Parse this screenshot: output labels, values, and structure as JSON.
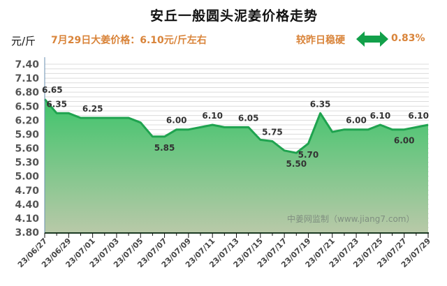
{
  "header": {
    "title": "安丘一般圆头泥姜价格走势",
    "unit": "元/斤",
    "price_note": "7月29日大姜价格：6.10元/斤左右",
    "compare_text": "较昨日稳硬",
    "compare_icon": "double-arrow-icon",
    "change_pct": "0.83%"
  },
  "colors": {
    "accent_orange": "#d9843a",
    "line_green": "#1fa34f",
    "fill_top": "#3fc46b",
    "fill_bottom": "#b8c9a8",
    "arrow_green": "#12a04a"
  },
  "watermark": "中姜网监制（www.jiang7.com）",
  "chart_data": {
    "type": "area",
    "title": "安丘一般圆头泥姜价格走势",
    "xlabel": "",
    "ylabel": "元/斤",
    "ylim": [
      3.8,
      7.4
    ],
    "yticks": [
      "7.40",
      "7.10",
      "6.80",
      "6.50",
      "6.20",
      "5.90",
      "5.60",
      "5.30",
      "5.00",
      "4.70",
      "4.40",
      "4.10",
      "3.80"
    ],
    "xtick_labels": [
      "23/06/27",
      "23/06/29",
      "23/07/01",
      "23/07/03",
      "23/07/05",
      "23/07/07",
      "23/07/09",
      "23/07/11",
      "23/07/13",
      "23/07/15",
      "23/07/17",
      "23/07/19",
      "23/07/21",
      "23/07/23",
      "23/07/25",
      "23/07/27",
      "23/07/29"
    ],
    "x": [
      "23/06/27",
      "23/06/28",
      "23/06/29",
      "23/06/30",
      "23/07/01",
      "23/07/02",
      "23/07/03",
      "23/07/04",
      "23/07/05",
      "23/07/06",
      "23/07/07",
      "23/07/08",
      "23/07/09",
      "23/07/10",
      "23/07/11",
      "23/07/12",
      "23/07/13",
      "23/07/14",
      "23/07/15",
      "23/07/16",
      "23/07/17",
      "23/07/18",
      "23/07/19",
      "23/07/20",
      "23/07/21",
      "23/07/22",
      "23/07/23",
      "23/07/24",
      "23/07/25",
      "23/07/26",
      "23/07/27",
      "23/07/28",
      "23/07/29"
    ],
    "values": [
      6.65,
      6.35,
      6.35,
      6.25,
      6.25,
      6.25,
      6.25,
      6.25,
      6.15,
      5.85,
      5.85,
      6.0,
      6.0,
      6.05,
      6.1,
      6.05,
      6.05,
      6.05,
      5.78,
      5.75,
      5.55,
      5.5,
      5.7,
      6.35,
      5.95,
      6.0,
      6.0,
      6.0,
      6.1,
      6.0,
      6.0,
      6.05,
      6.1
    ],
    "data_labels": [
      {
        "index": 0,
        "text": "6.65"
      },
      {
        "index": 1,
        "text": "6.35"
      },
      {
        "index": 4,
        "text": "6.25"
      },
      {
        "index": 10,
        "text": "5.85"
      },
      {
        "index": 11,
        "text": "6.00"
      },
      {
        "index": 14,
        "text": "6.10"
      },
      {
        "index": 17,
        "text": "6.05"
      },
      {
        "index": 19,
        "text": "5.75"
      },
      {
        "index": 21,
        "text": "5.50"
      },
      {
        "index": 22,
        "text": "5.70"
      },
      {
        "index": 23,
        "text": "6.35"
      },
      {
        "index": 26,
        "text": "6.00"
      },
      {
        "index": 28,
        "text": "6.10"
      },
      {
        "index": 30,
        "text": "6.00"
      },
      {
        "index": 32,
        "text": "6.10"
      }
    ],
    "grid": true,
    "legend": null
  }
}
